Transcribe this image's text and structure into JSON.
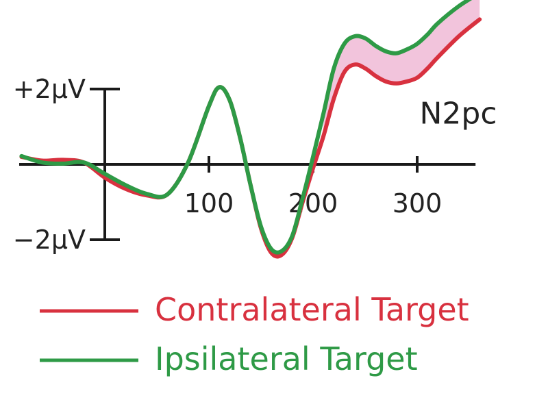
{
  "chart_data": {
    "type": "line",
    "xlabel": "",
    "ylabel": "",
    "x_ticks": [
      100,
      200,
      300
    ],
    "y_ticks": [
      {
        "value": 2,
        "label": "+2µV"
      },
      {
        "value": -2,
        "label": "−2µV"
      }
    ],
    "xlim": [
      -80,
      360
    ],
    "ylim": [
      -2.5,
      4.3
    ],
    "annotation": {
      "text": "N2pc",
      "x": 300,
      "y": 1.3
    },
    "shaded_difference": {
      "from_x": 205,
      "to_x": 360,
      "color": "#f2c4dc"
    },
    "legend_position": "bottom-left",
    "series": [
      {
        "name": "Contralateral Target",
        "color": "#d8313f",
        "x": [
          -80,
          -60,
          -40,
          -20,
          0,
          20,
          40,
          60,
          80,
          100,
          110,
          120,
          130,
          140,
          150,
          160,
          170,
          180,
          190,
          200,
          210,
          220,
          230,
          240,
          250,
          260,
          270,
          280,
          290,
          300,
          310,
          320,
          340,
          360
        ],
        "y": [
          0.2,
          0.1,
          0.12,
          0.05,
          -0.35,
          -0.65,
          -0.82,
          -0.8,
          0.05,
          1.55,
          2.05,
          1.7,
          0.7,
          -0.55,
          -1.7,
          -2.35,
          -2.4,
          -1.95,
          -1.0,
          -0.1,
          0.75,
          1.75,
          2.45,
          2.65,
          2.55,
          2.35,
          2.2,
          2.15,
          2.2,
          2.3,
          2.55,
          2.85,
          3.4,
          3.85
        ]
      },
      {
        "name": "Ipsilateral Target",
        "color": "#2e9a46",
        "x": [
          -80,
          -60,
          -40,
          -20,
          0,
          20,
          40,
          60,
          80,
          100,
          110,
          120,
          130,
          140,
          150,
          160,
          170,
          180,
          190,
          200,
          210,
          220,
          230,
          240,
          250,
          260,
          270,
          280,
          290,
          300,
          310,
          320,
          340,
          360
        ],
        "y": [
          0.22,
          0.05,
          0.02,
          0.05,
          -0.25,
          -0.55,
          -0.78,
          -0.8,
          0.05,
          1.55,
          2.05,
          1.7,
          0.7,
          -0.55,
          -1.65,
          -2.25,
          -2.3,
          -1.9,
          -0.9,
          0.2,
          1.35,
          2.55,
          3.2,
          3.4,
          3.35,
          3.15,
          3.0,
          2.95,
          3.05,
          3.2,
          3.45,
          3.75,
          4.2,
          4.55
        ]
      }
    ]
  }
}
